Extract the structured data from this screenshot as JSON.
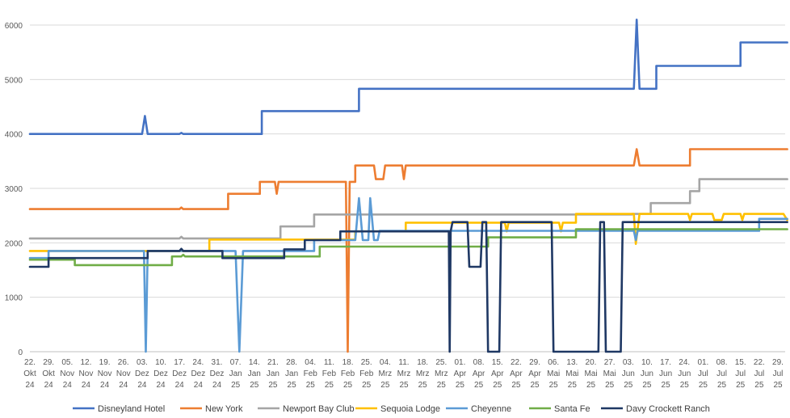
{
  "chart_data": {
    "type": "line",
    "title": "",
    "xlabel": "",
    "ylabel": "",
    "ylim": [
      0,
      6000
    ],
    "yticks": [
      0,
      1000,
      2000,
      3000,
      4000,
      5000,
      6000
    ],
    "grid": true,
    "legend_position": "bottom",
    "x_labels": [
      [
        "22.",
        "Okt",
        "24"
      ],
      [
        "29.",
        "Okt",
        "24"
      ],
      [
        "05.",
        "Nov",
        "24"
      ],
      [
        "12.",
        "Nov",
        "24"
      ],
      [
        "19.",
        "Nov",
        "24"
      ],
      [
        "26.",
        "Nov",
        "24"
      ],
      [
        "03.",
        "Dez",
        "24"
      ],
      [
        "10.",
        "Dez",
        "24"
      ],
      [
        "17.",
        "Dez",
        "24"
      ],
      [
        "24.",
        "Dez",
        "24"
      ],
      [
        "31.",
        "Dez",
        "24"
      ],
      [
        "07.",
        "Jan",
        "25"
      ],
      [
        "14.",
        "Jan",
        "25"
      ],
      [
        "21.",
        "Jan",
        "25"
      ],
      [
        "28.",
        "Jan",
        "25"
      ],
      [
        "04.",
        "Feb",
        "25"
      ],
      [
        "11.",
        "Feb",
        "25"
      ],
      [
        "18.",
        "Feb",
        "25"
      ],
      [
        "25.",
        "Feb",
        "25"
      ],
      [
        "04.",
        "Mrz",
        "25"
      ],
      [
        "11.",
        "Mrz",
        "25"
      ],
      [
        "18.",
        "Mrz",
        "25"
      ],
      [
        "25.",
        "Mrz",
        "25"
      ],
      [
        "01.",
        "Apr",
        "25"
      ],
      [
        "08.",
        "Apr",
        "25"
      ],
      [
        "15.",
        "Apr",
        "25"
      ],
      [
        "22.",
        "Apr",
        "25"
      ],
      [
        "29.",
        "Apr",
        "25"
      ],
      [
        "06.",
        "Mai",
        "25"
      ],
      [
        "13.",
        "Mai",
        "25"
      ],
      [
        "20.",
        "Mai",
        "25"
      ],
      [
        "27.",
        "Mai",
        "25"
      ],
      [
        "03.",
        "Jun",
        "25"
      ],
      [
        "10.",
        "Jun",
        "25"
      ],
      [
        "17.",
        "Jun",
        "25"
      ],
      [
        "24.",
        "Jun",
        "25"
      ],
      [
        "01.",
        "Jul",
        "25"
      ],
      [
        "08.",
        "Jul",
        "25"
      ],
      [
        "15.",
        "Jul",
        "25"
      ],
      [
        "22.",
        "Jul",
        "25"
      ],
      [
        "29.",
        "Jul",
        "25"
      ]
    ],
    "x_range_weeks": [
      0,
      40.5
    ],
    "series": [
      {
        "name": "Disneyland Hotel",
        "color": "#4472C4",
        "points": [
          [
            0,
            4000
          ],
          [
            6,
            4000
          ],
          [
            6.15,
            4330
          ],
          [
            6.3,
            4000
          ],
          [
            8,
            4000
          ],
          [
            8.1,
            4020
          ],
          [
            8.2,
            4000
          ],
          [
            12.4,
            4000
          ],
          [
            12.4,
            4420
          ],
          [
            17.6,
            4420
          ],
          [
            17.6,
            4830
          ],
          [
            32.3,
            4830
          ],
          [
            32.45,
            6100
          ],
          [
            32.6,
            4830
          ],
          [
            33.5,
            4830
          ],
          [
            33.5,
            5250
          ],
          [
            38,
            5250
          ],
          [
            38,
            5680
          ],
          [
            40.5,
            5680
          ]
        ]
      },
      {
        "name": "New York",
        "color": "#ED7D31",
        "points": [
          [
            0,
            2620
          ],
          [
            8,
            2620
          ],
          [
            8.1,
            2650
          ],
          [
            8.2,
            2620
          ],
          [
            10.6,
            2620
          ],
          [
            10.6,
            2900
          ],
          [
            12.3,
            2900
          ],
          [
            12.3,
            3120
          ],
          [
            13.1,
            3120
          ],
          [
            13.2,
            2900
          ],
          [
            13.3,
            3120
          ],
          [
            16.9,
            3120
          ],
          [
            17,
            0
          ],
          [
            17.1,
            3120
          ],
          [
            17.4,
            3120
          ],
          [
            17.4,
            3420
          ],
          [
            18.4,
            3420
          ],
          [
            18.5,
            3170
          ],
          [
            18.9,
            3170
          ],
          [
            19,
            3420
          ],
          [
            19.9,
            3420
          ],
          [
            20,
            3170
          ],
          [
            20.1,
            3420
          ],
          [
            32.3,
            3420
          ],
          [
            32.45,
            3720
          ],
          [
            32.6,
            3420
          ],
          [
            35.3,
            3420
          ],
          [
            35.3,
            3720
          ],
          [
            40.5,
            3720
          ]
        ]
      },
      {
        "name": "Newport Bay Club",
        "color": "#A5A5A5",
        "points": [
          [
            0,
            2080
          ],
          [
            8,
            2080
          ],
          [
            8.1,
            2110
          ],
          [
            8.2,
            2080
          ],
          [
            13.4,
            2080
          ],
          [
            13.4,
            2300
          ],
          [
            15.2,
            2300
          ],
          [
            15.2,
            2520
          ],
          [
            32.2,
            2520
          ],
          [
            32.2,
            2530
          ],
          [
            33.2,
            2530
          ],
          [
            33.2,
            2730
          ],
          [
            35.3,
            2730
          ],
          [
            35.3,
            2950
          ],
          [
            35.8,
            2950
          ],
          [
            35.8,
            3170
          ],
          [
            40.5,
            3170
          ]
        ]
      },
      {
        "name": "Sequoia Lodge",
        "color": "#FFC000",
        "points": [
          [
            0,
            1850
          ],
          [
            9.6,
            1850
          ],
          [
            9.6,
            2060
          ],
          [
            14.5,
            2060
          ],
          [
            14.5,
            2060
          ],
          [
            17.4,
            2060
          ],
          [
            17.4,
            2210
          ],
          [
            20.1,
            2210
          ],
          [
            20.1,
            2370
          ],
          [
            25.4,
            2370
          ],
          [
            25.5,
            2210
          ],
          [
            25.6,
            2370
          ],
          [
            28.3,
            2370
          ],
          [
            28.4,
            2210
          ],
          [
            28.5,
            2370
          ],
          [
            29.2,
            2370
          ],
          [
            29.2,
            2530
          ],
          [
            32.3,
            2530
          ],
          [
            32.4,
            1980
          ],
          [
            32.6,
            2530
          ],
          [
            35.2,
            2530
          ],
          [
            35.3,
            2420
          ],
          [
            35.4,
            2530
          ],
          [
            36.5,
            2530
          ],
          [
            36.6,
            2420
          ],
          [
            37,
            2420
          ],
          [
            37.1,
            2530
          ],
          [
            38,
            2530
          ],
          [
            38.1,
            2420
          ],
          [
            38.2,
            2530
          ],
          [
            40.3,
            2530
          ],
          [
            40.5,
            2420
          ]
        ]
      },
      {
        "name": "Cheyenne",
        "color": "#5B9BD5",
        "points": [
          [
            0,
            1720
          ],
          [
            1,
            1720
          ],
          [
            1,
            1850
          ],
          [
            6.1,
            1850
          ],
          [
            6.2,
            0
          ],
          [
            6.3,
            1850
          ],
          [
            11,
            1850
          ],
          [
            11.2,
            0
          ],
          [
            11.4,
            1850
          ],
          [
            15.2,
            1850
          ],
          [
            15.2,
            2050
          ],
          [
            17.4,
            2050
          ],
          [
            17.6,
            2820
          ],
          [
            17.8,
            2050
          ],
          [
            18.1,
            2050
          ],
          [
            18.2,
            2820
          ],
          [
            18.4,
            2050
          ],
          [
            18.6,
            2050
          ],
          [
            18.7,
            2220
          ],
          [
            32.3,
            2220
          ],
          [
            32.4,
            2050
          ],
          [
            32.5,
            2220
          ],
          [
            39,
            2220
          ],
          [
            39,
            2440
          ],
          [
            40.5,
            2440
          ]
        ]
      },
      {
        "name": "Santa Fe",
        "color": "#70AD47",
        "points": [
          [
            0,
            1690
          ],
          [
            2.4,
            1690
          ],
          [
            2.4,
            1590
          ],
          [
            7.6,
            1590
          ],
          [
            7.6,
            1750
          ],
          [
            8.1,
            1750
          ],
          [
            8.2,
            1780
          ],
          [
            8.3,
            1750
          ],
          [
            15.5,
            1750
          ],
          [
            15.5,
            1930
          ],
          [
            24.5,
            1930
          ],
          [
            24.5,
            2100
          ],
          [
            29.2,
            2100
          ],
          [
            29.2,
            2250
          ],
          [
            40.5,
            2250
          ]
        ]
      },
      {
        "name": "Davy Crockett Ranch",
        "color": "#1F3864",
        "points": [
          [
            0,
            1560
          ],
          [
            1,
            1560
          ],
          [
            1,
            1720
          ],
          [
            6.3,
            1720
          ],
          [
            6.3,
            1850
          ],
          [
            8,
            1850
          ],
          [
            8.1,
            1890
          ],
          [
            8.2,
            1850
          ],
          [
            10.3,
            1850
          ],
          [
            10.3,
            1720
          ],
          [
            13.6,
            1720
          ],
          [
            13.6,
            1880
          ],
          [
            14.7,
            1880
          ],
          [
            14.7,
            2050
          ],
          [
            16.6,
            2050
          ],
          [
            16.6,
            2210
          ],
          [
            22.4,
            2210
          ],
          [
            22.45,
            0
          ],
          [
            22.5,
            2210
          ],
          [
            22.6,
            2380
          ],
          [
            23.4,
            2380
          ],
          [
            23.5,
            1560
          ],
          [
            24.1,
            1560
          ],
          [
            24.2,
            2380
          ],
          [
            24.4,
            2380
          ],
          [
            24.5,
            0
          ],
          [
            25.1,
            0
          ],
          [
            25.2,
            2380
          ],
          [
            27.9,
            2380
          ],
          [
            28,
            0
          ],
          [
            30.4,
            0
          ],
          [
            30.5,
            2380
          ],
          [
            30.7,
            2380
          ],
          [
            30.8,
            0
          ],
          [
            31.6,
            0
          ],
          [
            31.7,
            2380
          ],
          [
            40.5,
            2380
          ]
        ]
      }
    ]
  }
}
